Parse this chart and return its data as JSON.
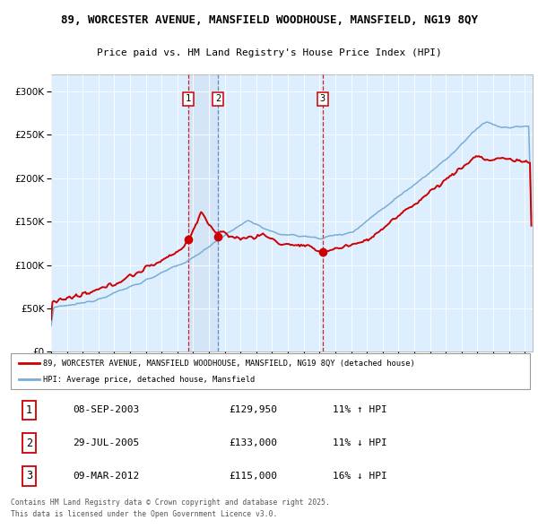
{
  "title_line1": "89, WORCESTER AVENUE, MANSFIELD WOODHOUSE, MANSFIELD, NG19 8QY",
  "title_line2": "Price paid vs. HM Land Registry's House Price Index (HPI)",
  "legend_line1": "89, WORCESTER AVENUE, MANSFIELD WOODHOUSE, MANSFIELD, NG19 8QY (detached house)",
  "legend_line2": "HPI: Average price, detached house, Mansfield",
  "transactions": [
    {
      "num": "1",
      "date": "08-SEP-2003",
      "price": "£129,950",
      "pct": "11% ↑ HPI",
      "x": 2003.69
    },
    {
      "num": "2",
      "date": "29-JUL-2005",
      "price": "£133,000",
      "pct": "11% ↓ HPI",
      "x": 2005.58
    },
    {
      "num": "3",
      "date": "09-MAR-2012",
      "price": "£115,000",
      "pct": "16% ↓ HPI",
      "x": 2012.19
    }
  ],
  "sale_prices": [
    129950,
    133000,
    115000
  ],
  "footer": "Contains HM Land Registry data © Crown copyright and database right 2025.\nThis data is licensed under the Open Government Licence v3.0.",
  "house_color": "#cc0000",
  "hpi_color": "#7aadd4",
  "bg_color": "#ddeeff",
  "ylim": [
    0,
    320000
  ],
  "yticks": [
    0,
    50000,
    100000,
    150000,
    200000,
    250000,
    300000
  ],
  "xlim_start": 1995.0,
  "xlim_end": 2025.5
}
